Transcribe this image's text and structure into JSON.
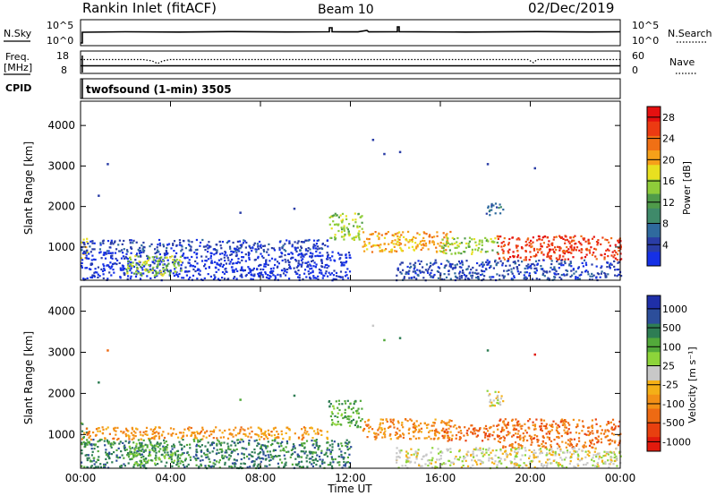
{
  "header": {
    "station": "Rankin Inlet (fitACF)",
    "beam": "Beam 10",
    "date": "02/Dec/2019"
  },
  "panels": {
    "nsky_label": "N.Sky",
    "nsky_ticks": [
      "10^5",
      "10^0"
    ],
    "nsearch_label": "N.Search",
    "nsearch_ticks": [
      "10^5",
      "10^0"
    ],
    "freq_label_1": "Freq.",
    "freq_label_2": "[MHz]",
    "freq_ticks": [
      "18",
      "8"
    ],
    "nave_label": "Nave",
    "nave_ticks": [
      "60",
      "0"
    ],
    "cpid_label": "CPID",
    "cpid_text": "twofsound (1-min) 3505"
  },
  "colors": {
    "power_scale": [
      "#1530e6",
      "#2a3da6",
      "#2f6a9e",
      "#3f8a6a",
      "#4f9b4a",
      "#8fcc3a",
      "#e8e020",
      "#f6a019",
      "#f07015",
      "#ec3a12",
      "#e51010"
    ],
    "velocity_scale": [
      "#1f2fa8",
      "#2c4e9a",
      "#2e7d54",
      "#52a93a",
      "#8dd43a",
      "#c8c8c8",
      "#f4b017",
      "#f39016",
      "#ee6a13",
      "#e8400f",
      "#e11a0d"
    ]
  },
  "chart_data": [
    {
      "type": "heatmap",
      "name": "power",
      "ylabel": "Slant Range [km]",
      "xlabel": "Time UT",
      "x_ticks": [
        "00:00",
        "04:00",
        "08:00",
        "12:00",
        "16:00",
        "20:00",
        "00:00"
      ],
      "y_ticks": [
        "1000",
        "2000",
        "3000",
        "4000"
      ],
      "xlim_hours": [
        0,
        24
      ],
      "ylim_km": [
        180,
        4600
      ],
      "colorbar_label": "Power [dB]",
      "colorbar_ticks": [
        "4",
        "8",
        "12",
        "16",
        "20",
        "24",
        "28"
      ],
      "regions": [
        {
          "t": [
            0.0,
            0.3
          ],
          "r": [
            700,
            1300
          ],
          "level": 6
        },
        {
          "t": [
            0.0,
            11.0
          ],
          "r": [
            900,
            1200
          ],
          "level": 1
        },
        {
          "t": [
            0.0,
            12.0
          ],
          "r": [
            200,
            900
          ],
          "level": 0
        },
        {
          "t": [
            2.0,
            4.5
          ],
          "r": [
            300,
            800
          ],
          "level": 5
        },
        {
          "t": [
            11.0,
            12.5
          ],
          "r": [
            1200,
            1850
          ],
          "level": 5
        },
        {
          "t": [
            12.5,
            16.5
          ],
          "r": [
            900,
            1400
          ],
          "level": 7
        },
        {
          "t": [
            16.0,
            18.5
          ],
          "r": [
            850,
            1250
          ],
          "level": 5
        },
        {
          "t": [
            18.5,
            24.0
          ],
          "r": [
            700,
            1300
          ],
          "level": 9
        },
        {
          "t": [
            14.0,
            24.0
          ],
          "r": [
            200,
            700
          ],
          "level": 1
        },
        {
          "t": [
            18.0,
            18.8
          ],
          "r": [
            1800,
            2100
          ],
          "level": 2
        }
      ],
      "sparse_points": [
        {
          "t": 1.2,
          "r": 3050,
          "level": 1
        },
        {
          "t": 0.8,
          "r": 2270,
          "level": 1
        },
        {
          "t": 7.1,
          "r": 1850,
          "level": 1
        },
        {
          "t": 9.5,
          "r": 1950,
          "level": 1
        },
        {
          "t": 13.0,
          "r": 3650,
          "level": 1
        },
        {
          "t": 13.5,
          "r": 3300,
          "level": 1
        },
        {
          "t": 14.2,
          "r": 3350,
          "level": 1
        },
        {
          "t": 18.1,
          "r": 3050,
          "level": 1
        },
        {
          "t": 20.2,
          "r": 2950,
          "level": 1
        }
      ]
    },
    {
      "type": "heatmap",
      "name": "velocity",
      "ylabel": "Slant Range [km]",
      "xlabel": "Time UT",
      "x_ticks": [
        "00:00",
        "04:00",
        "08:00",
        "12:00",
        "16:00",
        "20:00",
        "00:00"
      ],
      "y_ticks": [
        "1000",
        "2000",
        "3000",
        "4000"
      ],
      "xlim_hours": [
        0,
        24
      ],
      "ylim_km": [
        180,
        4600
      ],
      "colorbar_label": "Velocity [m s⁻¹]",
      "colorbar_ticks": [
        "1000",
        "500",
        "100",
        "25",
        "-25",
        "-100",
        "-500",
        "-1000"
      ],
      "regions": [
        {
          "t": [
            0.0,
            0.3
          ],
          "r": [
            700,
            1300
          ],
          "level": 3
        },
        {
          "t": [
            0.0,
            11.0
          ],
          "r": [
            900,
            1200
          ],
          "level": 7
        },
        {
          "t": [
            0.0,
            12.0
          ],
          "r": [
            200,
            900
          ],
          "level": 2
        },
        {
          "t": [
            2.0,
            4.5
          ],
          "r": [
            300,
            800
          ],
          "level": 3
        },
        {
          "t": [
            11.0,
            12.5
          ],
          "r": [
            1200,
            1850
          ],
          "level": 3
        },
        {
          "t": [
            12.5,
            16.5
          ],
          "r": [
            900,
            1400
          ],
          "level": 7
        },
        {
          "t": [
            16.0,
            18.5
          ],
          "r": [
            850,
            1250
          ],
          "level": 8
        },
        {
          "t": [
            18.5,
            24.0
          ],
          "r": [
            700,
            1400
          ],
          "level": 8
        },
        {
          "t": [
            14.0,
            24.0
          ],
          "r": [
            200,
            700
          ],
          "level": 5
        },
        {
          "t": [
            18.0,
            18.8
          ],
          "r": [
            1700,
            2100
          ],
          "level": 5
        }
      ],
      "sparse_points": [
        {
          "t": 1.2,
          "r": 3050,
          "level": 8
        },
        {
          "t": 0.8,
          "r": 2270,
          "level": 2
        },
        {
          "t": 7.1,
          "r": 1850,
          "level": 3
        },
        {
          "t": 9.5,
          "r": 1950,
          "level": 2
        },
        {
          "t": 13.0,
          "r": 3650,
          "level": 5
        },
        {
          "t": 13.5,
          "r": 3300,
          "level": 3
        },
        {
          "t": 14.2,
          "r": 3350,
          "level": 2
        },
        {
          "t": 18.1,
          "r": 3050,
          "level": 2
        },
        {
          "t": 20.2,
          "r": 2950,
          "level": 10
        }
      ]
    }
  ]
}
